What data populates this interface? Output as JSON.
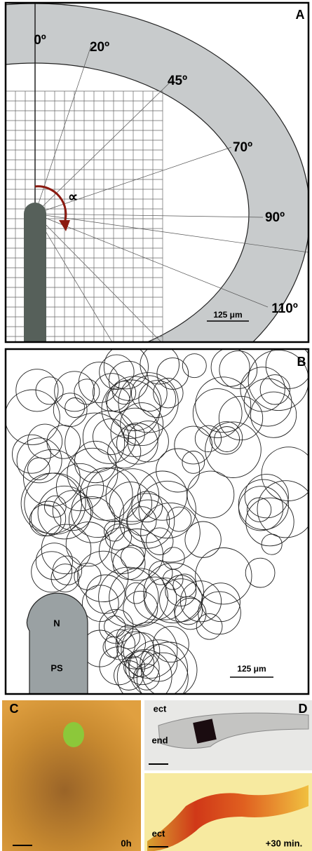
{
  "panel_a": {
    "label": "A",
    "angle_labels": [
      "0º",
      "20º",
      "45º",
      "70º",
      "90º",
      "110º"
    ],
    "symbol": "∝",
    "scale_bar": "125 μm"
  },
  "panel_b": {
    "label": "B",
    "node_label": "N",
    "streak_label": "PS",
    "scale_bar": "125 μm"
  },
  "panel_c": {
    "label": "C",
    "time": "0h"
  },
  "panel_d": {
    "label": "D",
    "top_labels": [
      "ect",
      "end"
    ],
    "bottom_label": "ect",
    "time": "+30 min."
  }
}
